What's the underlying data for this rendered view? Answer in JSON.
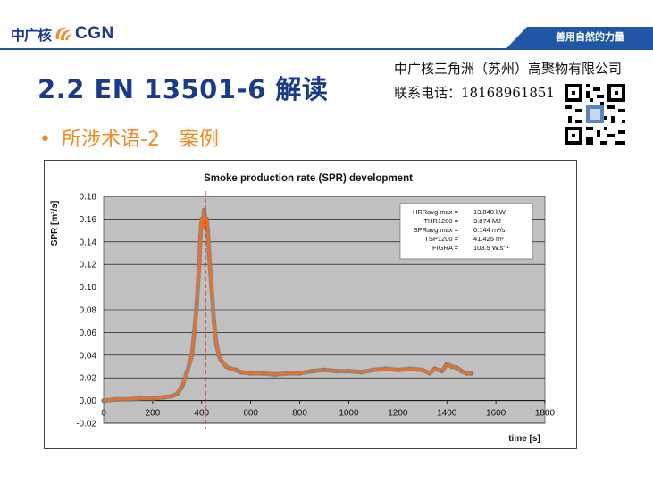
{
  "header": {
    "logo_cn": "中广核",
    "logo_en": "CGN",
    "slogan": "善用自然的力量"
  },
  "slide": {
    "title": "2.2 EN 13501-6 解读",
    "company": "中广核三角洲（苏州）高聚物有限公司",
    "phone": "联系电话：18168961851",
    "bullet": "所涉术语-2　案例"
  },
  "colors": {
    "brand_blue": "#1f57a6",
    "accent_orange": "#f08a24",
    "series_orange": "#ff6a13",
    "series_gray": "#808080",
    "plot_bg": "#c0c0c0",
    "marker_red": "#e02020"
  },
  "chart_data": {
    "type": "line",
    "title": "Smoke production rate (SPR) development",
    "xlabel": "time [s]",
    "ylabel": "SPR [m²/s]",
    "xlim": [
      0,
      1800
    ],
    "ylim": [
      -0.02,
      0.18
    ],
    "xticks": [
      "0",
      "200",
      "400",
      "600",
      "800",
      "1000",
      "1200",
      "1400",
      "1600",
      "1800"
    ],
    "yticks": [
      "0.18",
      "0.16",
      "0.14",
      "0.12",
      "0.10",
      "0.08",
      "0.06",
      "0.04",
      "0.02",
      "0.00",
      "-0.02"
    ],
    "marker_x": 415,
    "series": [
      {
        "name": "SPR",
        "x": [
          0,
          50,
          100,
          150,
          200,
          250,
          280,
          300,
          320,
          340,
          360,
          370,
          380,
          390,
          395,
          400,
          405,
          410,
          415,
          420,
          425,
          430,
          440,
          450,
          460,
          470,
          480,
          500,
          520,
          540,
          560,
          600,
          650,
          700,
          750,
          800,
          850,
          900,
          950,
          1000,
          1050,
          1100,
          1150,
          1200,
          1250,
          1300,
          1330,
          1350,
          1380,
          1400,
          1420,
          1440,
          1460,
          1480,
          1500
        ],
        "y": [
          0.0,
          0.001,
          0.001,
          0.002,
          0.002,
          0.003,
          0.004,
          0.006,
          0.012,
          0.025,
          0.04,
          0.06,
          0.085,
          0.12,
          0.145,
          0.16,
          0.153,
          0.168,
          0.155,
          0.16,
          0.15,
          0.13,
          0.1,
          0.07,
          0.05,
          0.04,
          0.035,
          0.03,
          0.028,
          0.027,
          0.025,
          0.024,
          0.024,
          0.023,
          0.024,
          0.024,
          0.026,
          0.027,
          0.026,
          0.026,
          0.025,
          0.027,
          0.028,
          0.027,
          0.028,
          0.027,
          0.024,
          0.028,
          0.026,
          0.032,
          0.03,
          0.029,
          0.026,
          0.024,
          0.024
        ]
      }
    ],
    "stats": [
      {
        "label": "HRRavg max =",
        "value": "13.848 kW"
      },
      {
        "label": "THR1200 =",
        "value": "3.874 MJ"
      },
      {
        "label": "SPRavg max =",
        "value": "0.144 m²/s"
      },
      {
        "label": "TSP1200 =",
        "value": "41.425 m²"
      },
      {
        "label": "FIGRA =",
        "value": "103.9 W.s⁻¹"
      }
    ]
  }
}
